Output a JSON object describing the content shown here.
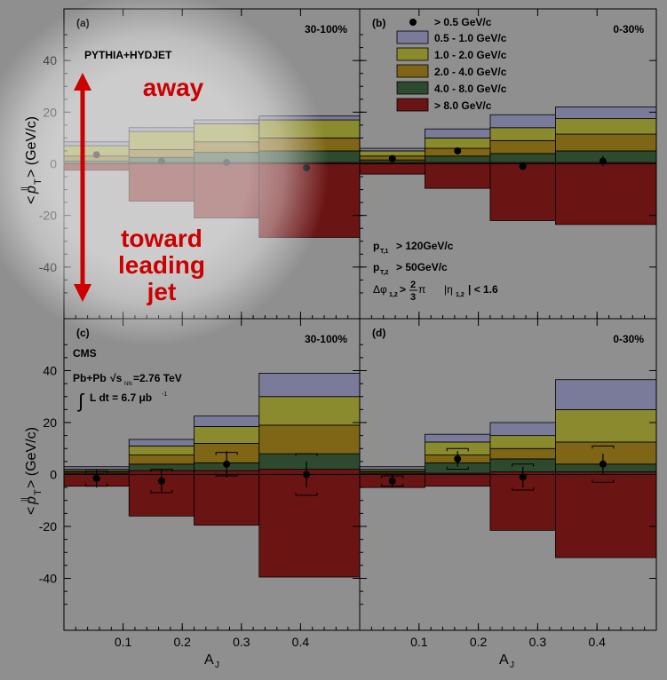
{
  "chart_data": {
    "type": "area",
    "xlabel": "A",
    "xlabel_sub": "J",
    "ylabel_parts": [
      "<",
      "p",
      "T",
      "> (GeV/c)"
    ],
    "ylabel_super": "||",
    "xlim": [
      0,
      0.5
    ],
    "ylim": [
      -60,
      60
    ],
    "x_bins": [
      [
        0,
        0.11
      ],
      [
        0.11,
        0.22
      ],
      [
        0.22,
        0.33
      ],
      [
        0.33,
        0.5
      ]
    ],
    "x_ticks": [
      "0.1",
      "0.2",
      "0.3",
      "0.4"
    ],
    "y_ticks": [
      "40",
      "20",
      "0",
      "-20",
      "-40"
    ],
    "legend": {
      "placement": "top-right",
      "marker_label": "> 0.5 GeV/c",
      "entries": [
        {
          "label": "0.5 - 1.0 GeV/c",
          "color": "#7a7a9a"
        },
        {
          "label": "1.0 - 2.0 GeV/c",
          "color": "#8a8a2e"
        },
        {
          "label": "2.0 - 4.0 GeV/c",
          "color": "#7e6616"
        },
        {
          "label": "4.0 - 8.0 GeV/c",
          "color": "#2e4a2e"
        },
        {
          "label": "> 8.0 GeV/c",
          "color": "#6b1414"
        }
      ]
    },
    "panels": [
      {
        "id": "a",
        "label": "(a)",
        "centrality": "30-100%",
        "note": "PYTHIA+HYDJET",
        "pos": [
          [
            1.5,
            1.5,
            1.5,
            1.5
          ],
          [
            4,
            7,
            7,
            7
          ],
          [
            2,
            3,
            4,
            5
          ],
          [
            1,
            2,
            4,
            4.5
          ],
          [
            0,
            0.5,
            0.5,
            0.5
          ]
        ],
        "neg_total": [
          -2.5,
          -14.5,
          -21,
          -28.5
        ],
        "points": [
          {
            "x": 0.055,
            "y": 3.5
          },
          {
            "x": 0.165,
            "y": 1
          },
          {
            "x": 0.275,
            "y": 0.5
          },
          {
            "x": 0.41,
            "y": -1.5
          }
        ]
      },
      {
        "id": "b",
        "label": "(b)",
        "centrality": "0-30%",
        "pos": [
          [
            1,
            3.5,
            5,
            4.5
          ],
          [
            2,
            4,
            5,
            6
          ],
          [
            1.5,
            3,
            5,
            6.5
          ],
          [
            1,
            2.5,
            3.5,
            4.5
          ],
          [
            0.5,
            0.5,
            0.5,
            0.5
          ]
        ],
        "neg_total": [
          -4,
          -9.5,
          -22,
          -23.5
        ],
        "points": [
          {
            "x": 0.055,
            "y": 2
          },
          {
            "x": 0.165,
            "y": 5
          },
          {
            "x": 0.275,
            "y": -1
          },
          {
            "x": 0.41,
            "y": 1,
            "err": 2
          }
        ]
      },
      {
        "id": "c",
        "label": "(c)",
        "centrality": "30-100%",
        "note": "CMS",
        "pos": [
          [
            1,
            2.5,
            4,
            9
          ],
          [
            0.5,
            3.5,
            6.5,
            11
          ],
          [
            0.5,
            3.5,
            7.5,
            11
          ],
          [
            0.5,
            2.5,
            3,
            6
          ],
          [
            0.5,
            1.5,
            1.5,
            2
          ]
        ],
        "neg_total": [
          -4.5,
          -16,
          -19.5,
          -39.5
        ],
        "points": [
          {
            "x": 0.055,
            "y": -1.5,
            "err": 3.5,
            "sys": 3
          },
          {
            "x": 0.165,
            "y": -2.5,
            "err": 4.5,
            "sys": 4.5
          },
          {
            "x": 0.275,
            "y": 4,
            "err": 5,
            "sys": 4.5
          },
          {
            "x": 0.41,
            "y": 0,
            "err": 5,
            "sys": 8
          }
        ]
      },
      {
        "id": "d",
        "label": "(d)",
        "centrality": "0-30%",
        "pos": [
          [
            1,
            3,
            5,
            11.5
          ],
          [
            0.5,
            5,
            5,
            12.5
          ],
          [
            0.5,
            3,
            4,
            8.5
          ],
          [
            0.5,
            4,
            5,
            3
          ],
          [
            0.5,
            0.5,
            1,
            1
          ]
        ],
        "neg_total": [
          -5,
          -4.5,
          -21.5,
          -32
        ],
        "points": [
          {
            "x": 0.055,
            "y": -2.5,
            "err": 2.5,
            "sys": 2
          },
          {
            "x": 0.165,
            "y": 6,
            "err": 3,
            "sys": 4
          },
          {
            "x": 0.275,
            "y": -1,
            "err": 4,
            "sys": 5
          },
          {
            "x": 0.41,
            "y": 4,
            "err": 4,
            "sys": 7
          }
        ]
      }
    ],
    "annotations": {
      "cuts": {
        "pt1_label": "p",
        "pt1_sub": "T,1",
        "pt1_text": "> 120GeV/c",
        "pt2_label": "p",
        "pt2_sub": "T,2",
        "pt2_text": "> 50GeV/c",
        "dphi_label": "Δφ",
        "dphi_sub": "1,2",
        "dphi_gt": ">",
        "frac_num": "2",
        "frac_den": "3",
        "pi": "π",
        "eta_label": "|η",
        "eta_sub": "1,2",
        "eta_text": "| < 1.6"
      },
      "cms_energy": {
        "prefix": "Pb+Pb",
        "sqrt": "√s",
        "sub": "NN",
        "text": "=2.76 TeV"
      },
      "lumi": {
        "integral": "∫",
        "text": "L dt = 6.7 μb",
        "sup": "-1"
      },
      "away": "away",
      "toward": [
        "toward",
        "leading",
        "jet"
      ],
      "arrow_color": "#cc0000"
    }
  }
}
